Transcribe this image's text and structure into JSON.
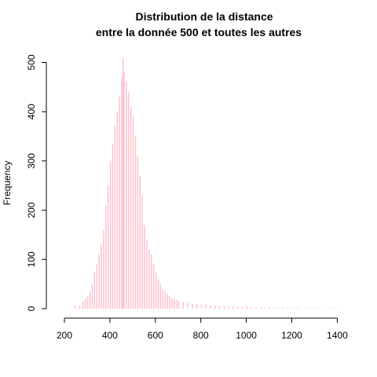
{
  "chart_data": {
    "type": "bar",
    "title": [
      "Distribution de la distance",
      "entre la donnée 500 et toutes les autres"
    ],
    "xlabel": "",
    "ylabel": "Frequency",
    "xlim": [
      180,
      1420
    ],
    "ylim": [
      0,
      510
    ],
    "x_ticks": [
      200,
      400,
      600,
      800,
      1000,
      1200,
      1400
    ],
    "y_ticks": [
      0,
      100,
      200,
      300,
      400,
      500
    ],
    "bin_width": 5,
    "color": "#FFC0CB",
    "grid": false,
    "legend": "none",
    "bins": [
      [
        200,
        1
      ],
      [
        245,
        7
      ],
      [
        265,
        7
      ],
      [
        280,
        15
      ],
      [
        290,
        20
      ],
      [
        300,
        25
      ],
      [
        310,
        35
      ],
      [
        320,
        50
      ],
      [
        330,
        75
      ],
      [
        340,
        90
      ],
      [
        350,
        110
      ],
      [
        360,
        130
      ],
      [
        370,
        160
      ],
      [
        380,
        210
      ],
      [
        390,
        250
      ],
      [
        400,
        300
      ],
      [
        410,
        335
      ],
      [
        420,
        370
      ],
      [
        430,
        400
      ],
      [
        440,
        430
      ],
      [
        450,
        470
      ],
      [
        455,
        510
      ],
      [
        460,
        480
      ],
      [
        470,
        460
      ],
      [
        480,
        440
      ],
      [
        490,
        410
      ],
      [
        500,
        390
      ],
      [
        510,
        350
      ],
      [
        520,
        310
      ],
      [
        530,
        270
      ],
      [
        540,
        230
      ],
      [
        550,
        170
      ],
      [
        560,
        140
      ],
      [
        570,
        120
      ],
      [
        580,
        110
      ],
      [
        590,
        90
      ],
      [
        600,
        75
      ],
      [
        610,
        60
      ],
      [
        620,
        50
      ],
      [
        630,
        40
      ],
      [
        640,
        35
      ],
      [
        650,
        30
      ],
      [
        660,
        25
      ],
      [
        670,
        22
      ],
      [
        680,
        20
      ],
      [
        690,
        18
      ],
      [
        700,
        16
      ],
      [
        720,
        14
      ],
      [
        740,
        12
      ],
      [
        760,
        10
      ],
      [
        780,
        9
      ],
      [
        800,
        8
      ],
      [
        820,
        8
      ],
      [
        840,
        7
      ],
      [
        860,
        6
      ],
      [
        880,
        6
      ],
      [
        900,
        5
      ],
      [
        920,
        5
      ],
      [
        940,
        5
      ],
      [
        960,
        4
      ],
      [
        980,
        4
      ],
      [
        1000,
        6
      ],
      [
        1020,
        4
      ],
      [
        1040,
        3
      ],
      [
        1060,
        3
      ],
      [
        1080,
        2
      ],
      [
        1100,
        3
      ],
      [
        1120,
        2
      ],
      [
        1140,
        2
      ],
      [
        1160,
        2
      ],
      [
        1180,
        2
      ],
      [
        1200,
        2
      ],
      [
        1220,
        2
      ],
      [
        1240,
        1
      ],
      [
        1260,
        1
      ],
      [
        1280,
        1
      ],
      [
        1300,
        1
      ],
      [
        1320,
        1
      ],
      [
        1340,
        1
      ],
      [
        1360,
        1
      ],
      [
        1380,
        1
      ],
      [
        1400,
        1
      ]
    ]
  }
}
